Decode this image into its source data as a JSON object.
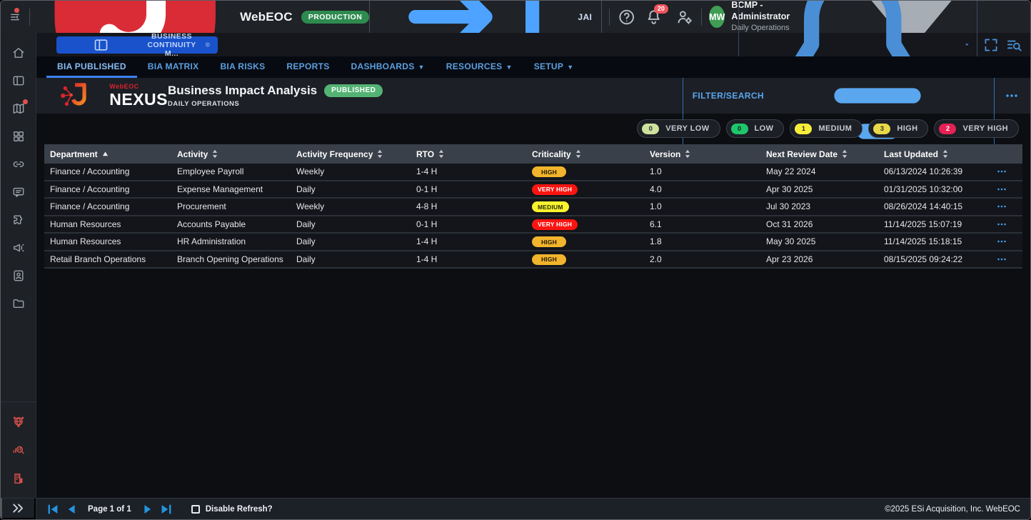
{
  "topbar": {
    "app_name": "WebEOC",
    "environment_badge": "PRODUCTION",
    "jai_button_label": "JAI",
    "notification_count": "20",
    "user": {
      "initials": "MW",
      "name": "BCMP - Administrator",
      "position": "Daily Operations"
    }
  },
  "board_bar": {
    "active_board_label": "BUSINESS CONTINUITY M..."
  },
  "nav_tabs": [
    {
      "label": "BIA PUBLISHED",
      "active": true,
      "dropdown": false
    },
    {
      "label": "BIA MATRIX",
      "active": false,
      "dropdown": false
    },
    {
      "label": "BIA RISKS",
      "active": false,
      "dropdown": false
    },
    {
      "label": "REPORTS",
      "active": false,
      "dropdown": false
    },
    {
      "label": "DASHBOARDS",
      "active": false,
      "dropdown": true
    },
    {
      "label": "RESOURCES",
      "active": false,
      "dropdown": true
    },
    {
      "label": "SETUP",
      "active": false,
      "dropdown": true
    }
  ],
  "page_header": {
    "brand_small": "WebEOC",
    "brand_main": "NEXUS",
    "title": "Business Impact Analysis",
    "status_badge": "PUBLISHED",
    "subtitle": "DAILY OPERATIONS",
    "filter_button_label": "FILTER/SEARCH"
  },
  "criticality_summary": [
    {
      "count": "0",
      "label": "VERY LOW",
      "badge_bg": "#cde29b",
      "badge_fg": "#2f3338"
    },
    {
      "count": "0",
      "label": "LOW",
      "badge_bg": "#1fc56a",
      "badge_fg": "#0d2b1a"
    },
    {
      "count": "1",
      "label": "MEDIUM",
      "badge_bg": "#f7ee3b",
      "badge_fg": "#33331a"
    },
    {
      "count": "3",
      "label": "HIGH",
      "badge_bg": "#e9d94a",
      "badge_fg": "#33331a"
    },
    {
      "count": "2",
      "label": "VERY HIGH",
      "badge_bg": "#e62154",
      "badge_fg": "#ffffff"
    }
  ],
  "table": {
    "columns": [
      {
        "label": "Department",
        "sort": "asc"
      },
      {
        "label": "Activity",
        "sort": "both"
      },
      {
        "label": "Activity Frequency",
        "sort": "both"
      },
      {
        "label": "RTO",
        "sort": "both"
      },
      {
        "label": "Criticality",
        "sort": "both"
      },
      {
        "label": "Version",
        "sort": "both"
      },
      {
        "label": "Next Review Date",
        "sort": "both"
      },
      {
        "label": "Last Updated",
        "sort": "both"
      }
    ],
    "rows": [
      {
        "department": "Finance / Accounting",
        "activity": "Employee Payroll",
        "activity_frequency": "Weekly",
        "rto": "1-4 H",
        "criticality": "HIGH",
        "version": "1.0",
        "next_review_date": "May 22 2024",
        "last_updated": "06/13/2024 10:26:39"
      },
      {
        "department": "Finance / Accounting",
        "activity": "Expense Management",
        "activity_frequency": "Daily",
        "rto": "0-1 H",
        "criticality": "VERY HIGH",
        "version": "4.0",
        "next_review_date": "Apr 30 2025",
        "last_updated": "01/31/2025 10:32:00"
      },
      {
        "department": "Finance / Accounting",
        "activity": "Procurement",
        "activity_frequency": "Weekly",
        "rto": "4-8 H",
        "criticality": "MEDIUM",
        "version": "1.0",
        "next_review_date": "Jul 30 2023",
        "last_updated": "08/26/2024 14:40:15"
      },
      {
        "department": "Human Resources",
        "activity": "Accounts Payable",
        "activity_frequency": "Daily",
        "rto": "0-1 H",
        "criticality": "VERY HIGH",
        "version": "6.1",
        "next_review_date": "Oct 31 2026",
        "last_updated": "11/14/2025 15:07:19"
      },
      {
        "department": "Human Resources",
        "activity": "HR Administration",
        "activity_frequency": "Daily",
        "rto": "1-4 H",
        "criticality": "HIGH",
        "version": "1.8",
        "next_review_date": "May 30 2025",
        "last_updated": "11/14/2025 15:18:15"
      },
      {
        "department": "Retail Branch Operations",
        "activity": "Branch Opening Operations",
        "activity_frequency": "Daily",
        "rto": "1-4 H",
        "criticality": "HIGH",
        "version": "2.0",
        "next_review_date": "Apr 23 2026",
        "last_updated": "08/15/2025 09:24:22"
      }
    ],
    "criticality_badge_colors": {
      "HIGH": {
        "bg": "#f1b42c",
        "fg": "#231a02"
      },
      "MEDIUM": {
        "bg": "#f8f32e",
        "fg": "#2b2a05"
      },
      "VERY HIGH": {
        "bg": "#fb1410",
        "fg": "#ffffff"
      }
    }
  },
  "sidebar": {
    "items": [
      {
        "icon": "home-icon",
        "dot": false
      },
      {
        "icon": "board-panels-icon",
        "dot": false
      },
      {
        "icon": "map-icon",
        "dot": true
      },
      {
        "icon": "apps-grid-icon",
        "dot": false
      },
      {
        "icon": "link-icon",
        "dot": false
      },
      {
        "icon": "chat-icon",
        "dot": false
      },
      {
        "icon": "plugin-puzzle-icon",
        "dot": false
      },
      {
        "icon": "megaphone-icon",
        "dot": false
      },
      {
        "icon": "contact-card-icon",
        "dot": false
      },
      {
        "icon": "folder-icon",
        "dot": false
      }
    ],
    "bottom_items": [
      {
        "icon": "globe-network-icon"
      },
      {
        "icon": "search-analytics-icon"
      },
      {
        "icon": "organization-building-icon"
      }
    ]
  },
  "footer": {
    "page_label": "Page 1 of 1",
    "disable_refresh_label": "Disable Refresh?",
    "copyright": "©2025 ESi Acquisition, Inc. WebEOC"
  },
  "colors": {
    "accent_blue": "#3f9df0",
    "active_board_bg": "#1a52cc",
    "production_badge_bg": "#2e8b4f",
    "published_badge_bg": "#53b374",
    "avatar_bg": "#3f9e53",
    "notification_badge_bg": "#f0545e",
    "alert_dot": "#e0514f"
  }
}
